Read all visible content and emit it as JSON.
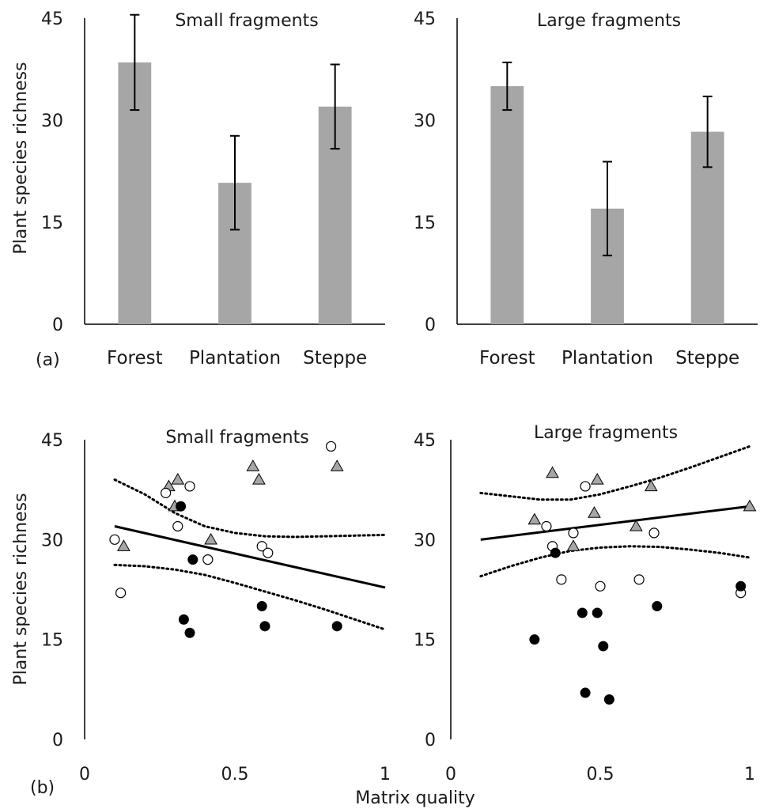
{
  "figure": {
    "ylabel": "Plant species richness",
    "xlabel_bottom": "Matrix quality",
    "panel_a": "(a)",
    "panel_b": "(b)"
  },
  "colors": {
    "bar": "#a6a6a6",
    "axis": "#000000",
    "triangle_fill": "#a6a6a6",
    "filled_circle": "#000000",
    "open_circle": "#ffffff"
  },
  "chart_data": [
    {
      "type": "bar",
      "title": "Small fragments",
      "categories": [
        "Forest",
        "Plantation",
        "Steppe"
      ],
      "values": [
        38.5,
        20.8,
        32.0
      ],
      "errors": [
        7.0,
        6.9,
        6.2
      ],
      "ylim": [
        0,
        45
      ],
      "yticks": [
        0,
        15,
        30,
        45
      ],
      "ylabel": "Plant species richness",
      "xlabel": "",
      "grid": false
    },
    {
      "type": "bar",
      "title": "Large fragments",
      "categories": [
        "Forest",
        "Plantation",
        "Steppe"
      ],
      "values": [
        35.0,
        17.0,
        28.3
      ],
      "errors": [
        3.5,
        6.9,
        5.2
      ],
      "ylim": [
        0,
        45
      ],
      "yticks": [
        0,
        15,
        30,
        45
      ],
      "ylabel": "",
      "xlabel": "",
      "grid": false
    },
    {
      "type": "scatter",
      "title": "Small fragments",
      "xlim": [
        0,
        1
      ],
      "ylim": [
        0,
        45
      ],
      "xticks": [
        0,
        0.5,
        1
      ],
      "xtick_labels": [
        "0",
        "0.5",
        "1"
      ],
      "yticks": [
        0,
        15,
        30,
        45
      ],
      "ylabel": "Plant species richness",
      "xlabel": "Matrix quality",
      "grid": false,
      "series": [
        {
          "marker": "triangle",
          "points": [
            [
              0.28,
              38
            ],
            [
              0.31,
              39
            ],
            [
              0.3,
              35
            ],
            [
              0.13,
              29
            ],
            [
              0.42,
              30
            ],
            [
              0.56,
              41
            ],
            [
              0.58,
              39
            ],
            [
              0.84,
              41
            ]
          ]
        },
        {
          "marker": "open-circle",
          "points": [
            [
              0.1,
              30
            ],
            [
              0.12,
              22
            ],
            [
              0.27,
              37
            ],
            [
              0.31,
              32
            ],
            [
              0.35,
              38
            ],
            [
              0.41,
              27
            ],
            [
              0.59,
              29
            ],
            [
              0.61,
              28
            ],
            [
              0.82,
              44
            ]
          ]
        },
        {
          "marker": "filled-circle",
          "points": [
            [
              0.32,
              35
            ],
            [
              0.36,
              27
            ],
            [
              0.33,
              18
            ],
            [
              0.35,
              16
            ],
            [
              0.59,
              20
            ],
            [
              0.6,
              17
            ],
            [
              0.84,
              17
            ]
          ]
        }
      ],
      "fit_line": {
        "x": [
          0.1,
          1.0
        ],
        "y": [
          32.0,
          22.8
        ]
      },
      "ci_upper": {
        "x": [
          0.1,
          0.2,
          0.3,
          0.4,
          0.5,
          0.6,
          0.7,
          0.8,
          0.9,
          1.0
        ],
        "y": [
          39.0,
          36.8,
          34.0,
          32.0,
          31.0,
          30.5,
          30.4,
          30.5,
          30.6,
          30.7
        ]
      },
      "ci_lower": {
        "x": [
          0.1,
          0.2,
          0.3,
          0.4,
          0.5,
          0.6,
          0.7,
          0.8,
          0.9,
          1.0
        ],
        "y": [
          26.2,
          26.0,
          25.5,
          24.7,
          23.5,
          22.2,
          20.9,
          19.5,
          18.0,
          16.5
        ]
      }
    },
    {
      "type": "scatter",
      "title": "Large fragments",
      "xlim": [
        0,
        1
      ],
      "ylim": [
        0,
        45
      ],
      "xticks": [
        0,
        0.5,
        1
      ],
      "xtick_labels": [
        "0",
        "0.5",
        "1"
      ],
      "yticks": [
        0,
        15,
        30,
        45
      ],
      "ylabel": "",
      "xlabel": "",
      "grid": false,
      "series": [
        {
          "marker": "triangle",
          "points": [
            [
              0.28,
              33
            ],
            [
              0.34,
              40
            ],
            [
              0.49,
              39
            ],
            [
              0.48,
              34
            ],
            [
              0.41,
              29
            ],
            [
              0.62,
              32
            ],
            [
              0.67,
              38
            ],
            [
              1.0,
              35
            ]
          ]
        },
        {
          "marker": "open-circle",
          "points": [
            [
              0.32,
              32
            ],
            [
              0.34,
              29
            ],
            [
              0.37,
              24
            ],
            [
              0.41,
              31
            ],
            [
              0.45,
              38
            ],
            [
              0.5,
              23
            ],
            [
              0.63,
              24
            ],
            [
              0.68,
              31
            ],
            [
              0.97,
              22
            ]
          ]
        },
        {
          "marker": "filled-circle",
          "points": [
            [
              0.35,
              28
            ],
            [
              0.28,
              15
            ],
            [
              0.44,
              19
            ],
            [
              0.49,
              19
            ],
            [
              0.51,
              14
            ],
            [
              0.45,
              7
            ],
            [
              0.53,
              6
            ],
            [
              0.69,
              20
            ],
            [
              0.97,
              23
            ]
          ]
        }
      ],
      "fit_line": {
        "x": [
          0.1,
          1.0
        ],
        "y": [
          30.0,
          35.0
        ]
      },
      "ci_upper": {
        "x": [
          0.1,
          0.2,
          0.3,
          0.4,
          0.5,
          0.6,
          0.7,
          0.8,
          0.9,
          1.0
        ],
        "y": [
          37.0,
          36.5,
          36.0,
          36.0,
          36.8,
          38.0,
          39.3,
          40.8,
          42.4,
          44.0
        ]
      },
      "ci_lower": {
        "x": [
          0.1,
          0.2,
          0.3,
          0.4,
          0.5,
          0.6,
          0.7,
          0.8,
          0.9,
          1.0
        ],
        "y": [
          24.5,
          26.0,
          27.3,
          28.3,
          28.8,
          29.0,
          28.9,
          28.5,
          28.0,
          27.3
        ]
      }
    }
  ]
}
